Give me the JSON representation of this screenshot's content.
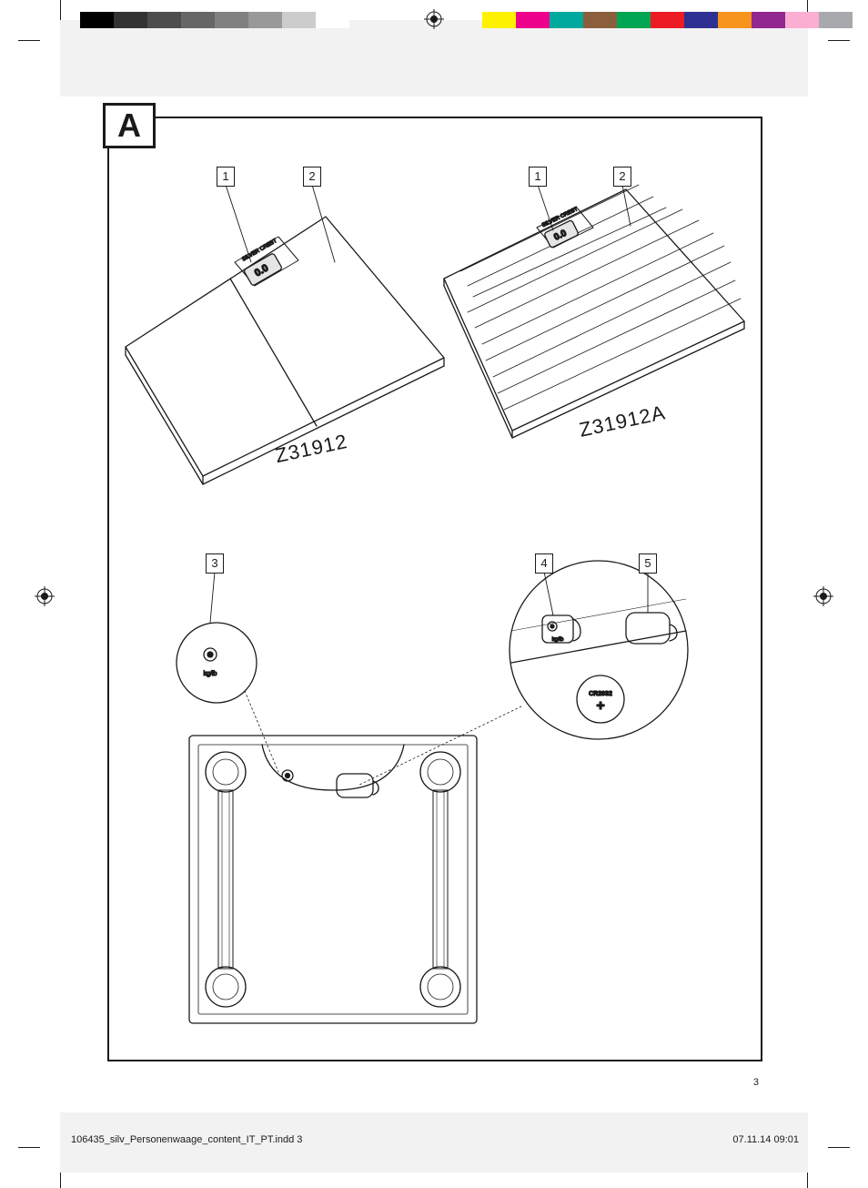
{
  "print": {
    "gray_swatches": [
      "#000000",
      "#333333",
      "#4d4d4d",
      "#666666",
      "#808080",
      "#999999",
      "#cccccc",
      "#ffffff"
    ],
    "color_swatches": [
      "#fff200",
      "#ec008c",
      "#00a99d",
      "#8b5e3c",
      "#00a651",
      "#ed1c24",
      "#2e3192",
      "#f7941d",
      "#92278f",
      "#fbaed2",
      "#a7a9ac",
      "#ffffff"
    ],
    "reg_mark_color": "#1a1a1a"
  },
  "page": {
    "number": "3",
    "footer_file": "106435_silv_Personenwaage_content_IT_PT.indd   3",
    "footer_date": "07.11.14   09:01"
  },
  "panel": {
    "label": "A"
  },
  "callouts": {
    "c1a": "1",
    "c2a": "2",
    "c1b": "1",
    "c2b": "2",
    "c3": "3",
    "c4": "4",
    "c5": "5"
  },
  "models": {
    "left": "Z31912",
    "right": "Z31912A"
  },
  "detail": {
    "button_label": "kg/lb",
    "battery_label": "CR2032",
    "battery_symbol": "+",
    "display_value": "0.0",
    "brand_text": "SILVER CREST"
  },
  "style": {
    "stroke": "#1a1a1a",
    "stroke_width_main": 1.5,
    "stroke_width_thin": 0.8,
    "background": "#ffffff"
  }
}
